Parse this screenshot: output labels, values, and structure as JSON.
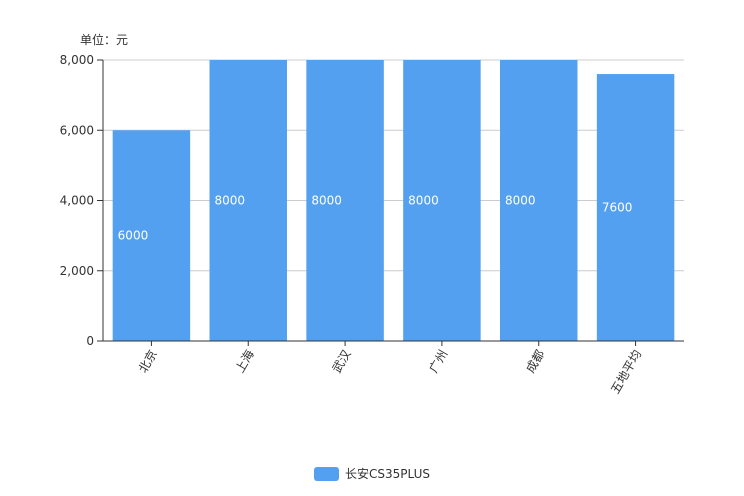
{
  "unit_label": "单位：元",
  "chart_data": {
    "type": "bar",
    "categories": [
      "北京",
      "上海",
      "武汉",
      "广州",
      "成都",
      "五地平均"
    ],
    "series": [
      {
        "name": "长安CS35PLUS",
        "values": [
          6000,
          8000,
          8000,
          8000,
          8000,
          7600
        ]
      }
    ],
    "data_labels": [
      "6000",
      "8000",
      "8000",
      "8000",
      "8000",
      "7600"
    ],
    "y_ticks": [
      0,
      2000,
      4000,
      6000,
      8000
    ],
    "y_tick_labels": [
      "0",
      "2,000",
      "4,000",
      "6,000",
      "8,000"
    ],
    "ylim": [
      0,
      8000
    ],
    "grid": true,
    "legend_position": "bottom",
    "colors": {
      "bar": "#539ff0",
      "grid": "#cccccc",
      "axis": "#333333",
      "text": "#333333",
      "label": "#ffffff"
    }
  }
}
